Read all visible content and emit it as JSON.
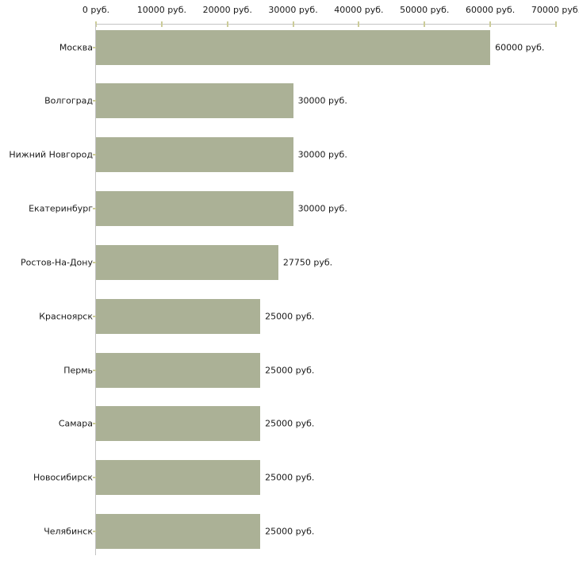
{
  "chart_data": {
    "type": "bar",
    "orientation": "horizontal",
    "title": "",
    "xlabel": "",
    "ylabel": "",
    "grid": false,
    "legend": "none",
    "categories": [
      "Москва",
      "Волгоград",
      "Нижний Новгород",
      "Екатеринбург",
      "Ростов-На-Дону",
      "Красноярск",
      "Пермь",
      "Самара",
      "Новосибирск",
      "Челябинск"
    ],
    "values": [
      60000,
      30000,
      30000,
      30000,
      27750,
      25000,
      25000,
      25000,
      25000,
      25000
    ],
    "value_labels": [
      "60000 руб.",
      "30000 руб.",
      "30000 руб.",
      "30000 руб.",
      "27750 руб.",
      "25000 руб.",
      "25000 руб.",
      "25000 руб.",
      "25000 руб.",
      "25000 руб."
    ],
    "x_axis": {
      "position": "top",
      "min": 0,
      "max": 70000,
      "step": 10000,
      "tick_values": [
        0,
        10000,
        20000,
        30000,
        40000,
        50000,
        60000,
        70000
      ],
      "tick_labels": [
        "0 руб.",
        "10000 руб.",
        "20000 руб.",
        "30000 руб.",
        "40000 руб.",
        "50000 руб.",
        "60000 руб.",
        "70000 руб."
      ]
    },
    "colors": {
      "bar": "#ABB196",
      "axis_line": "#C3C3C3",
      "tick": "#CCCC99",
      "text": "#1a1a1a",
      "background": "#FFFFFF"
    }
  }
}
